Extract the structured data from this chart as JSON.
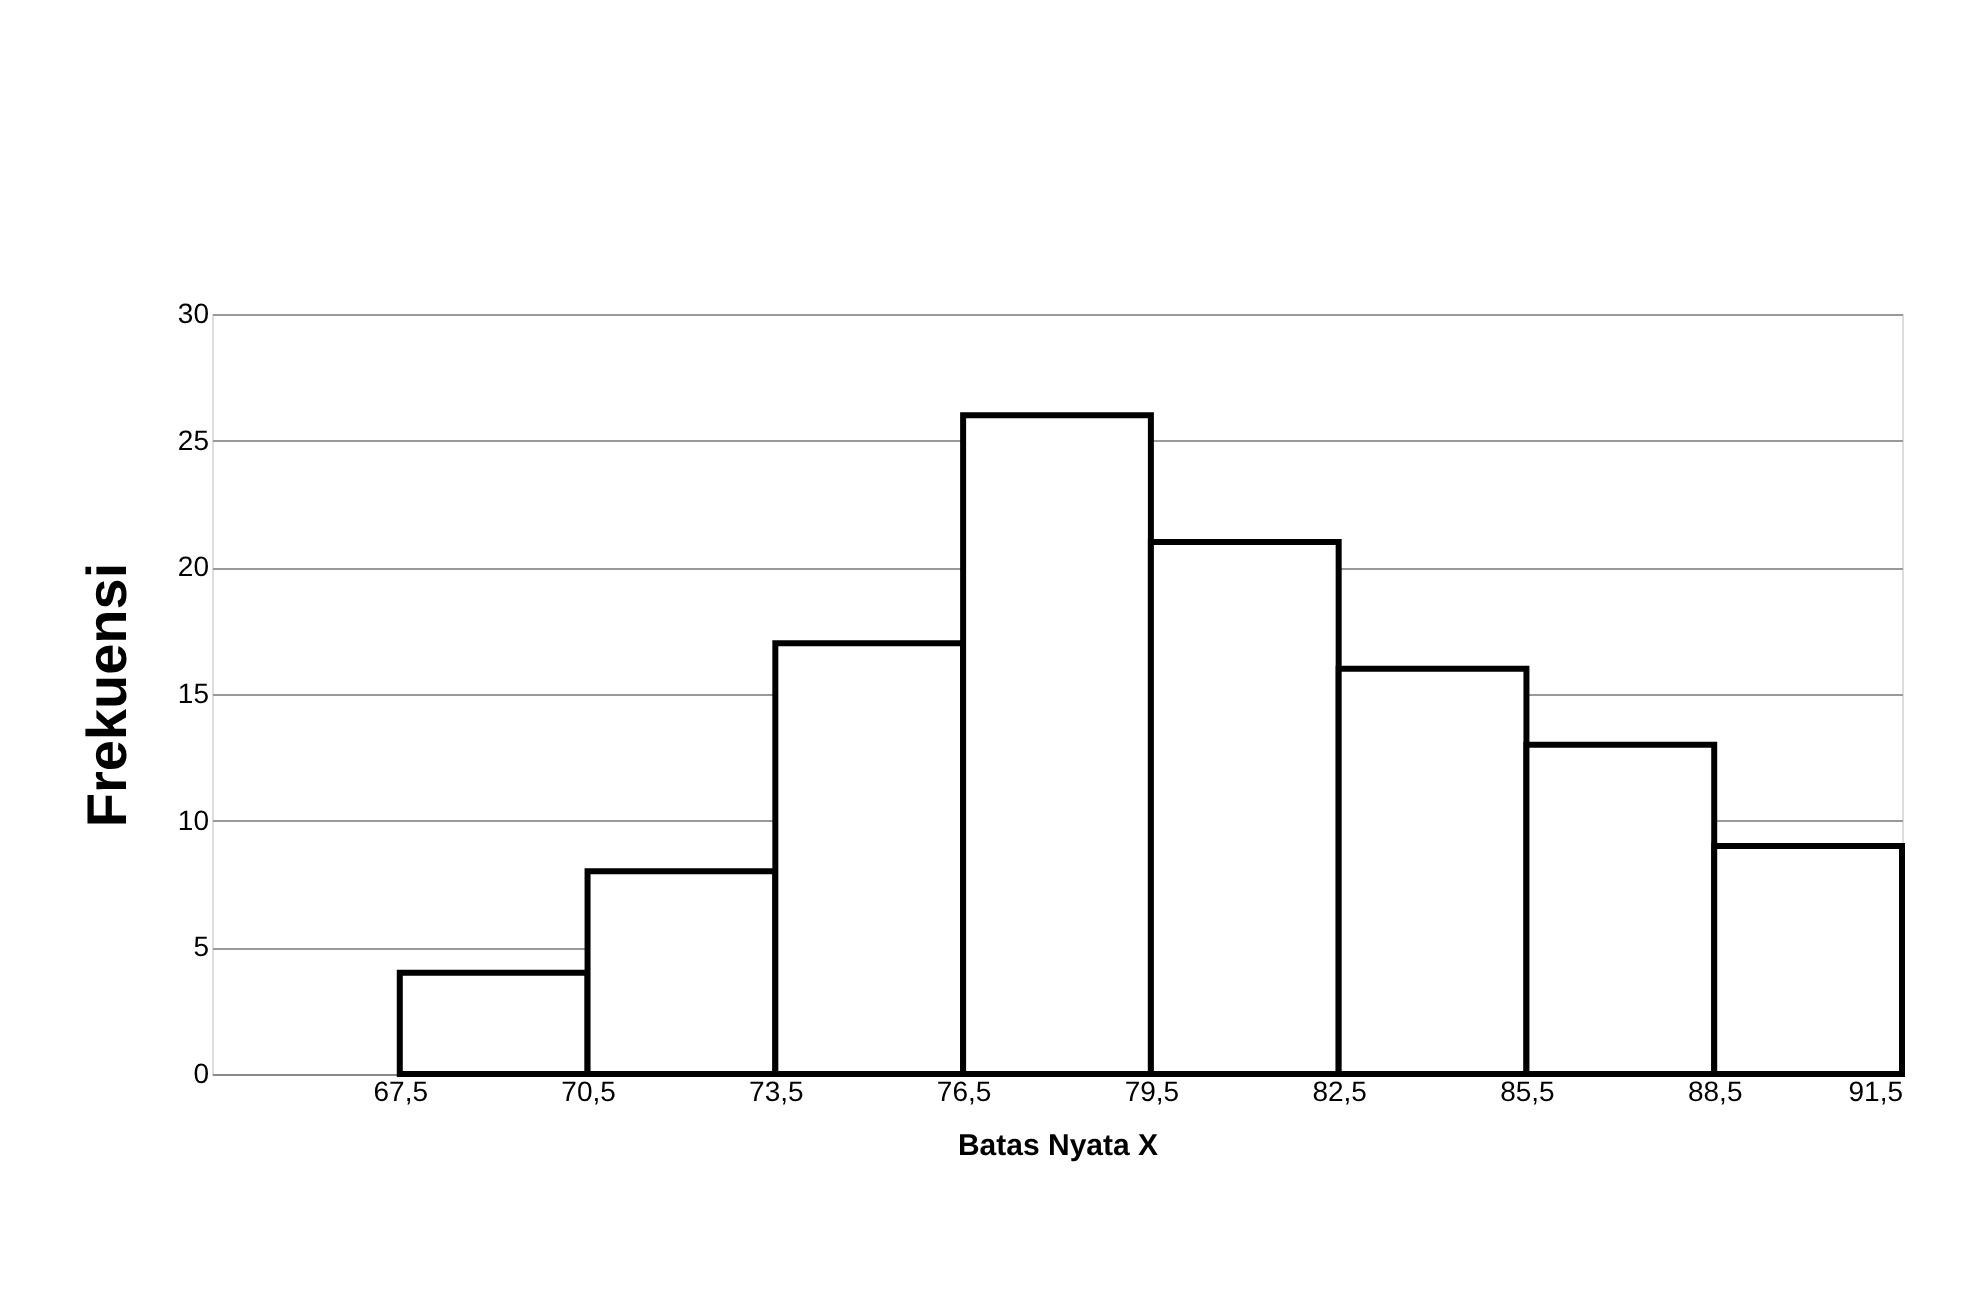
{
  "chart_data": {
    "type": "histogram",
    "xlabel": "Batas Nyata X",
    "ylabel": "Frekuensi",
    "bins": [
      67.5,
      70.5,
      73.5,
      76.5,
      79.5,
      82.5,
      85.5,
      88.5,
      91.5
    ],
    "values": [
      4,
      8,
      17,
      26,
      21,
      16,
      13,
      9
    ],
    "color": "#ffffff",
    "xlim": [
      64.5,
      91.5
    ],
    "xticks": [
      {
        "value": 67.5,
        "label": "67,5"
      },
      {
        "value": 70.5,
        "label": "70,5"
      },
      {
        "value": 73.5,
        "label": "73,5"
      },
      {
        "value": 76.5,
        "label": "76,5"
      },
      {
        "value": 79.5,
        "label": "79,5"
      },
      {
        "value": 82.5,
        "label": "82,5"
      },
      {
        "value": 85.5,
        "label": "85,5"
      },
      {
        "value": 88.5,
        "label": "88,5"
      },
      {
        "value": 91.5,
        "label": "91,5"
      }
    ],
    "ylim": [
      0,
      30
    ],
    "yticks": [
      0,
      5,
      10,
      15,
      20,
      25,
      30
    ],
    "grid": "y"
  }
}
